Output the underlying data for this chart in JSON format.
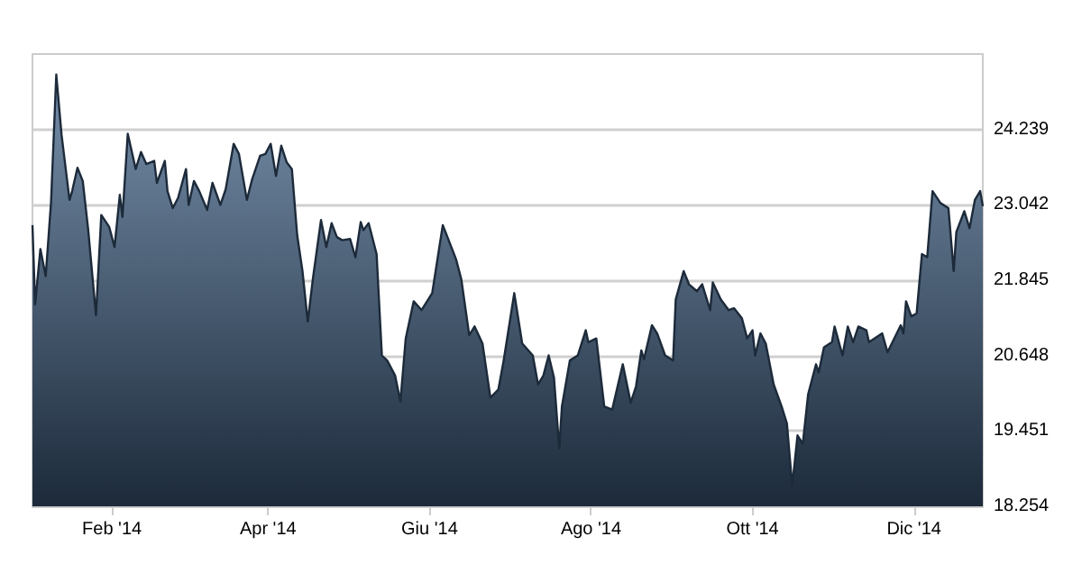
{
  "chart_data": {
    "type": "area",
    "color": "#1c2a3a",
    "x": [
      "2014-01-02",
      "2014-01-03",
      "2014-01-05",
      "2014-01-07",
      "2014-01-09",
      "2014-01-11",
      "2014-01-13",
      "2014-01-16",
      "2014-01-17",
      "2014-01-19",
      "2014-01-21",
      "2014-01-23",
      "2014-01-26",
      "2014-01-28",
      "2014-01-31",
      "2014-02-02",
      "2014-02-04",
      "2014-02-05",
      "2014-02-07",
      "2014-02-10",
      "2014-02-12",
      "2014-02-14",
      "2014-02-17",
      "2014-02-18",
      "2014-02-21",
      "2014-02-22",
      "2014-02-24",
      "2014-02-26",
      "2014-03-01",
      "2014-03-02",
      "2014-03-04",
      "2014-03-06",
      "2014-03-09",
      "2014-03-11",
      "2014-03-14",
      "2014-03-16",
      "2014-03-19",
      "2014-03-21",
      "2014-03-24",
      "2014-03-26",
      "2014-03-29",
      "2014-03-31",
      "2014-04-02",
      "2014-04-04",
      "2014-04-06",
      "2014-04-08",
      "2014-04-10",
      "2014-04-12",
      "2014-04-14",
      "2014-04-16",
      "2014-04-18",
      "2014-04-21",
      "2014-04-23",
      "2014-04-25",
      "2014-04-27",
      "2014-04-29",
      "2014-05-02",
      "2014-05-04",
      "2014-05-06",
      "2014-05-07",
      "2014-05-09",
      "2014-05-12",
      "2014-05-14",
      "2014-05-16",
      "2014-05-19",
      "2014-05-21",
      "2014-05-23",
      "2014-05-26",
      "2014-05-29",
      "2014-06-02",
      "2014-06-06",
      "2014-06-11",
      "2014-06-13",
      "2014-06-16",
      "2014-06-18",
      "2014-06-21",
      "2014-06-24",
      "2014-06-27",
      "2014-06-29",
      "2014-07-03",
      "2014-07-06",
      "2014-07-10",
      "2014-07-12",
      "2014-07-14",
      "2014-07-16",
      "2014-07-18",
      "2014-07-20",
      "2014-07-21",
      "2014-07-24",
      "2014-07-27",
      "2014-07-30",
      "2014-07-31",
      "2014-08-03",
      "2014-08-06",
      "2014-08-09",
      "2014-08-13",
      "2014-08-16",
      "2014-08-18",
      "2014-08-20",
      "2014-08-21",
      "2014-08-24",
      "2014-08-26",
      "2014-08-29",
      "2014-09-01",
      "2014-09-02",
      "2014-09-05",
      "2014-09-07",
      "2014-09-10",
      "2014-09-12",
      "2014-09-15",
      "2014-09-16",
      "2014-09-19",
      "2014-09-22",
      "2014-09-24",
      "2014-09-27",
      "2014-09-29",
      "2014-10-01",
      "2014-10-02",
      "2014-10-04",
      "2014-10-06",
      "2014-10-09",
      "2014-10-12",
      "2014-10-14",
      "2014-10-16",
      "2014-10-18",
      "2014-10-20",
      "2014-10-22",
      "2014-10-25",
      "2014-10-26",
      "2014-10-28",
      "2014-10-31",
      "2014-11-01",
      "2014-11-04",
      "2014-11-06",
      "2014-11-08",
      "2014-11-10",
      "2014-11-13",
      "2014-11-14",
      "2014-11-19",
      "2014-11-21",
      "2014-11-26",
      "2014-11-27",
      "2014-11-28",
      "2014-11-30",
      "2014-12-02",
      "2014-12-04",
      "2014-12-06",
      "2014-12-08",
      "2014-12-11",
      "2014-12-14",
      "2014-12-16",
      "2014-12-17",
      "2014-12-20",
      "2014-12-22",
      "2014-12-24",
      "2014-12-26",
      "2014-12-27"
    ],
    "values": [
      22720,
      21460,
      22340,
      21910,
      23070,
      25110,
      24150,
      23120,
      23260,
      23630,
      23420,
      22670,
      21290,
      22880,
      22690,
      22370,
      23200,
      22850,
      24170,
      23610,
      23880,
      23690,
      23740,
      23390,
      23740,
      23260,
      22990,
      23150,
      23610,
      23040,
      23420,
      23260,
      22960,
      23390,
      23040,
      23290,
      24010,
      23850,
      23120,
      23450,
      23820,
      23850,
      24010,
      23500,
      23980,
      23720,
      23610,
      22560,
      21990,
      21190,
      21890,
      22800,
      22370,
      22750,
      22530,
      22480,
      22500,
      22210,
      22770,
      22640,
      22750,
      22260,
      20650,
      20570,
      20330,
      19920,
      20920,
      21510,
      21370,
      21640,
      22720,
      22180,
      21860,
      20970,
      21110,
      20840,
      19980,
      20110,
      20570,
      21640,
      20840,
      20650,
      20190,
      20330,
      20650,
      20300,
      19170,
      19840,
      20570,
      20650,
      21050,
      20860,
      20920,
      19840,
      19790,
      20510,
      19900,
      20160,
      20730,
      20590,
      21130,
      21000,
      20650,
      20570,
      21540,
      21990,
      21780,
      21670,
      21780,
      21370,
      21810,
      21540,
      21370,
      21400,
      21240,
      20920,
      21050,
      20650,
      21000,
      20840,
      20190,
      19840,
      19570,
      18580,
      19380,
      19250,
      20030,
      20510,
      20380,
      20780,
      20860,
      21110,
      20650,
      21110,
      20860,
      21110,
      21050,
      20860,
      21000,
      20700,
      21130,
      21000,
      21510,
      21270,
      21320,
      22260,
      22210,
      23260,
      23070,
      22990,
      21990,
      22610,
      22940,
      22670,
      23120,
      23260,
      23020
    ],
    "xlim": [
      "2014-01-02",
      "2014-12-27"
    ],
    "xticks": [
      {
        "value": "2014-02-01",
        "label": "Feb '14"
      },
      {
        "value": "2014-04-01",
        "label": "Apr '14"
      },
      {
        "value": "2014-06-01",
        "label": "Giu '14"
      },
      {
        "value": "2014-08-01",
        "label": "Ago '14"
      },
      {
        "value": "2014-10-01",
        "label": "Ott '14"
      },
      {
        "value": "2014-12-01",
        "label": "Dic '14"
      }
    ],
    "ylim": [
      18254,
      25436
    ],
    "yticks": [
      {
        "value": 18254,
        "label": "18.254"
      },
      {
        "value": 19451,
        "label": "19.451"
      },
      {
        "value": 20648,
        "label": "20.648"
      },
      {
        "value": 21845,
        "label": "21.845"
      },
      {
        "value": 23042,
        "label": "23.042"
      },
      {
        "value": 24239,
        "label": "24.239"
      }
    ],
    "grid": "y",
    "marker": "none",
    "line_style": "solid"
  }
}
